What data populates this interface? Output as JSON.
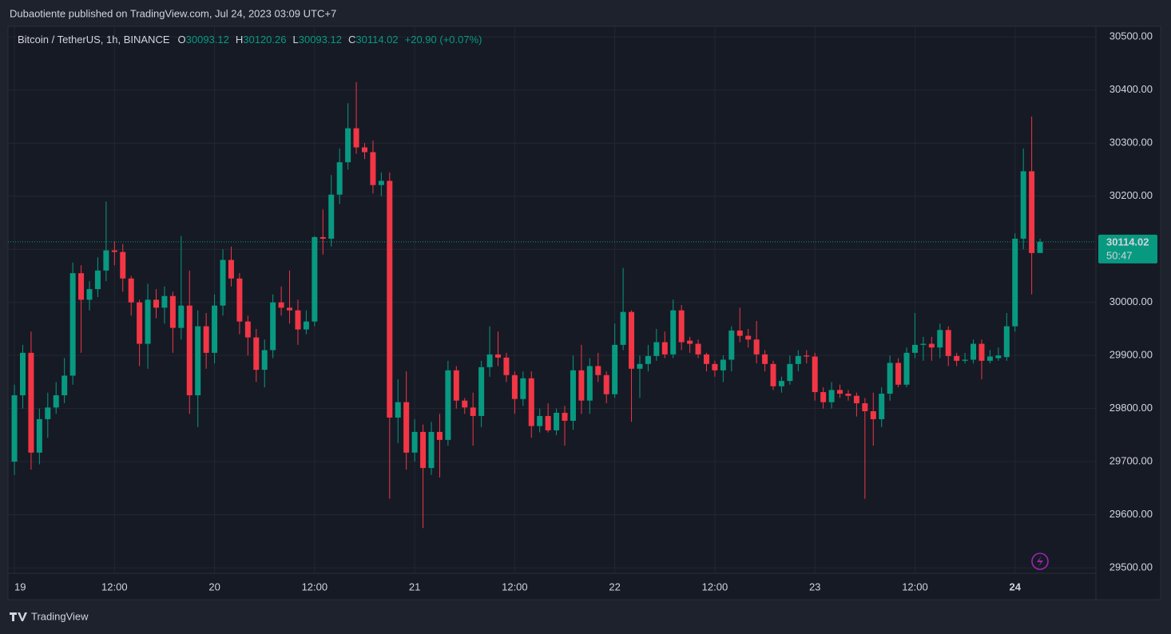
{
  "chart_data": {
    "type": "candlestick",
    "published": "Dubaotiente published on TradingView.com, Jul 24, 2023 03:09 UTC+7",
    "title": "Bitcoin / TetherUS, 1h, BINANCE",
    "ohlc_letters": [
      "O",
      "H",
      "L",
      "C"
    ],
    "change_label": "+20.90 (+0.07%)",
    "countdown": "50:47",
    "brand": "TradingView",
    "up_color": "#089981",
    "down_color": "#f23645",
    "grid": true,
    "open": [
      29700,
      29825,
      29905,
      29717,
      29780,
      29802,
      29825,
      29862,
      30055,
      30005,
      30025,
      30060,
      30098,
      30095,
      30045,
      30000,
      29922,
      30005,
      29990,
      30012,
      29952,
      29994,
      29825,
      29955,
      29905,
      29994,
      30080,
      30045,
      29964,
      29934,
      29873,
      29910,
      30000,
      29990,
      29985,
      29949,
      29964,
      30123,
      30120,
      30203,
      30264,
      30328,
      30292,
      30283,
      30221,
      30229,
      29783,
      29812,
      29717,
      29756,
      29688,
      29756,
      29741,
      29872,
      29815,
      29802,
      29786,
      29878,
      29902,
      29896,
      29863,
      29818,
      29857,
      29767,
      29786,
      29759,
      29792,
      29777,
      29872,
      29815,
      29880,
      29863,
      29827,
      29920,
      29982,
      29875,
      29884,
      29899,
      29925,
      29902,
      29985,
      29928,
      29922,
      29902,
      29884,
      29872,
      29892,
      29947,
      29937,
      29930,
      29902,
      29884,
      29842,
      29852,
      29884,
      29900,
      29898,
      29831,
      29812,
      29835,
      29828,
      29824,
      29810,
      29795,
      29780,
      29828,
      29886,
      29845,
      29905,
      29920,
      29922,
      29915,
      29948,
      29899,
      29890,
      29892,
      29922,
      29890,
      29895,
      29897,
      29955,
      30120,
      30247,
      30093.12
    ],
    "high": [
      29845,
      29920,
      29945,
      29800,
      29830,
      29850,
      29895,
      30075,
      30070,
      30040,
      30085,
      30190,
      30115,
      30110,
      30050,
      30005,
      30035,
      30025,
      30030,
      30020,
      30125,
      30060,
      29985,
      29980,
      30015,
      30100,
      30105,
      30055,
      29975,
      29950,
      29930,
      30015,
      30030,
      30060,
      30005,
      29985,
      30125,
      30175,
      30240,
      30290,
      30375,
      30415,
      30300,
      30305,
      30245,
      30245,
      29855,
      29870,
      29780,
      29770,
      29775,
      29790,
      29890,
      29880,
      29820,
      29830,
      29890,
      29955,
      29945,
      29905,
      29870,
      29870,
      29870,
      29800,
      29810,
      29800,
      29805,
      29900,
      29920,
      29895,
      29905,
      29870,
      29960,
      30065,
      29985,
      29900,
      29920,
      29950,
      29945,
      30005,
      29995,
      29935,
      29930,
      29905,
      29890,
      29900,
      29955,
      29990,
      29950,
      29965,
      29910,
      29890,
      29860,
      29900,
      29910,
      29910,
      29905,
      29840,
      29850,
      29845,
      29835,
      29830,
      29820,
      29830,
      29840,
      29900,
      29895,
      29915,
      29980,
      29935,
      29935,
      29960,
      29955,
      29905,
      29905,
      29930,
      29930,
      29910,
      29915,
      29980,
      30130,
      30290,
      30350,
      30120.26
    ],
    "low": [
      29675,
      29800,
      29685,
      29695,
      29745,
      29790,
      29810,
      29845,
      29905,
      29985,
      30010,
      30040,
      30070,
      30020,
      29975,
      29880,
      29875,
      29970,
      29960,
      29905,
      29930,
      29790,
      29765,
      29875,
      29885,
      29975,
      30030,
      29940,
      29900,
      29850,
      29840,
      29895,
      29975,
      29960,
      29920,
      29940,
      29955,
      30090,
      30105,
      30185,
      30250,
      30280,
      30270,
      30205,
      30200,
      29630,
      29735,
      29685,
      29700,
      29575,
      29675,
      29670,
      29730,
      29800,
      29790,
      29730,
      29765,
      29860,
      29880,
      29850,
      29790,
      29805,
      29745,
      29755,
      29755,
      29750,
      29730,
      29760,
      29790,
      29790,
      29850,
      29810,
      29820,
      29910,
      29775,
      29820,
      29870,
      29890,
      29895,
      29895,
      29910,
      29905,
      29895,
      29870,
      29860,
      29850,
      29870,
      29925,
      29915,
      29885,
      29870,
      29835,
      29830,
      29845,
      29870,
      29885,
      29815,
      29800,
      29800,
      29820,
      29815,
      29785,
      29630,
      29730,
      29765,
      29815,
      29840,
      29840,
      29895,
      29890,
      29890,
      29895,
      29880,
      29880,
      29885,
      29885,
      29855,
      29885,
      29890,
      29890,
      29945,
      30100,
      30015,
      30093.12
    ],
    "close": [
      29825,
      29905,
      29717,
      29780,
      29802,
      29825,
      29862,
      30055,
      30005,
      30025,
      30060,
      30098,
      30095,
      30045,
      30000,
      29922,
      30005,
      29990,
      30012,
      29952,
      29994,
      29825,
      29955,
      29905,
      29994,
      30080,
      30045,
      29964,
      29934,
      29873,
      29910,
      30000,
      29990,
      29985,
      29949,
      29964,
      30123,
      30120,
      30203,
      30264,
      30328,
      30292,
      30283,
      30221,
      30229,
      29783,
      29812,
      29717,
      29756,
      29688,
      29756,
      29741,
      29872,
      29815,
      29802,
      29786,
      29878,
      29902,
      29896,
      29863,
      29818,
      29857,
      29767,
      29786,
      29759,
      29792,
      29777,
      29872,
      29815,
      29880,
      29863,
      29827,
      29920,
      29982,
      29875,
      29884,
      29899,
      29925,
      29902,
      29985,
      29925,
      29922,
      29902,
      29884,
      29872,
      29892,
      29947,
      29937,
      29930,
      29902,
      29884,
      29842,
      29852,
      29884,
      29899,
      29898,
      29831,
      29812,
      29835,
      29828,
      29824,
      29810,
      29795,
      29780,
      29828,
      29886,
      29845,
      29905,
      29920,
      29922,
      29915,
      29948,
      29899,
      29890,
      29892,
      29922,
      29890,
      29898,
      29900,
      29955,
      30120,
      30247,
      30093,
      30114.02
    ],
    "xlim": [
      -0.77,
      129.7
    ],
    "xticks": [
      {
        "value": 0,
        "label": "19"
      },
      {
        "value": 12,
        "label": "12:00"
      },
      {
        "value": 24,
        "label": "20"
      },
      {
        "value": 36,
        "label": "12:00"
      },
      {
        "value": 48,
        "label": "21"
      },
      {
        "value": 60,
        "label": "12:00"
      },
      {
        "value": 72,
        "label": "22"
      },
      {
        "value": 84,
        "label": "12:00"
      },
      {
        "value": 96,
        "label": "23"
      },
      {
        "value": 108,
        "label": "12:00"
      },
      {
        "value": 120,
        "label": "24"
      }
    ],
    "ylim": [
      29440,
      30520
    ],
    "yticks": [
      {
        "value": 29500,
        "label": "29500.00"
      },
      {
        "value": 29600,
        "label": "29600.00"
      },
      {
        "value": 29700,
        "label": "29700.00"
      },
      {
        "value": 29800,
        "label": "29800.00"
      },
      {
        "value": 29900,
        "label": "29900.00"
      },
      {
        "value": 30000,
        "label": "30000.00"
      },
      {
        "value": 30100,
        "label": "30100.00"
      },
      {
        "value": 30200,
        "label": "30200.00"
      },
      {
        "value": 30300,
        "label": "30300.00"
      },
      {
        "value": 30400,
        "label": "30400.00"
      },
      {
        "value": 30500,
        "label": "30500.00"
      }
    ]
  }
}
